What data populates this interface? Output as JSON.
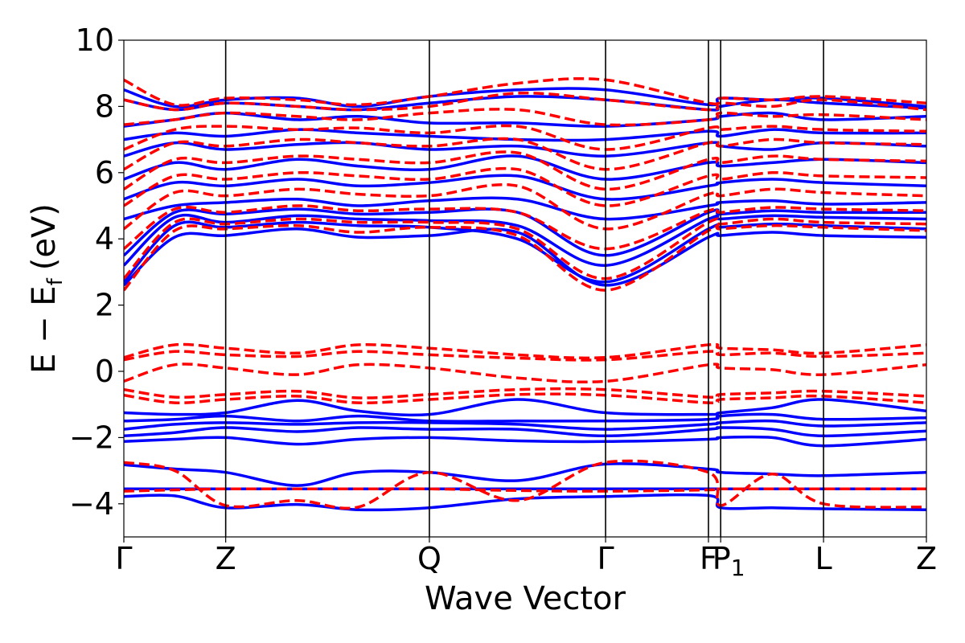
{
  "chart_data": {
    "type": "line",
    "xlabel": "Wave Vector",
    "ylabel_main": "E − E",
    "ylabel_sub": "f",
    "ylabel_unit": "(eV)",
    "ylim": [
      -5,
      10
    ],
    "xlim": [
      0,
      7.88
    ],
    "grid": false,
    "yticks": [
      -4,
      -2,
      0,
      2,
      4,
      6,
      8,
      10
    ],
    "ytick_labels": [
      "−4",
      "−2",
      "0",
      "2",
      "4",
      "6",
      "8",
      "10"
    ],
    "kpoints": [
      {
        "label": "Γ",
        "sub": "",
        "x": 0
      },
      {
        "label": "Z",
        "sub": "",
        "x": 1.0
      },
      {
        "label": "Q",
        "sub": "",
        "x": 3.0
      },
      {
        "label": "Γ",
        "sub": "",
        "x": 4.73
      },
      {
        "label": "F",
        "sub": "",
        "x": 5.74
      },
      {
        "label": "P",
        "sub": "1",
        "x": 5.86
      },
      {
        "label": "L",
        "sub": "",
        "x": 6.87
      },
      {
        "label": "Z",
        "sub": "",
        "x": 7.88
      }
    ],
    "series": [
      {
        "color": "#0000ff",
        "dash": "solid",
        "bands": [
          [
            -3.78,
            -3.76,
            -4.12,
            -4.02,
            -4.18,
            -4.12,
            -3.85,
            -3.78,
            -3.75,
            -4.12,
            -4.12,
            -4.15,
            -4.18
          ],
          [
            -3.55,
            -3.55,
            -3.55,
            -3.55,
            -3.55,
            -3.55,
            -3.55,
            -3.55,
            -3.55,
            -3.55,
            -3.55,
            -3.55,
            -3.55
          ],
          [
            -2.82,
            -2.95,
            -3.05,
            -3.45,
            -3.05,
            -3.05,
            -3.3,
            -2.8,
            -2.95,
            -3.05,
            -3.1,
            -3.15,
            -3.05
          ],
          [
            -2.12,
            -2.05,
            -2.0,
            -2.2,
            -2.05,
            -2.0,
            -2.1,
            -2.12,
            -2.05,
            -2.0,
            -2.0,
            -2.25,
            -2.05
          ],
          [
            -1.95,
            -1.85,
            -1.7,
            -1.82,
            -1.7,
            -1.75,
            -1.75,
            -1.95,
            -1.75,
            -1.7,
            -1.75,
            -1.95,
            -1.8
          ],
          [
            -1.75,
            -1.6,
            -1.55,
            -1.6,
            -1.55,
            -1.55,
            -1.6,
            -1.75,
            -1.6,
            -1.55,
            -1.5,
            -1.65,
            -1.55
          ],
          [
            -1.5,
            -1.45,
            -1.35,
            -1.5,
            -1.35,
            -1.5,
            -1.5,
            -1.5,
            -1.45,
            -1.35,
            -1.3,
            -1.45,
            -1.4
          ],
          [
            -1.25,
            -1.3,
            -1.25,
            -0.88,
            -1.2,
            -1.3,
            -0.85,
            -1.25,
            -1.3,
            -1.25,
            -1.1,
            -0.85,
            -1.2
          ],
          [
            2.6,
            4.05,
            4.1,
            4.3,
            4.05,
            4.1,
            4.2,
            2.6,
            4.05,
            4.1,
            4.2,
            4.1,
            4.05
          ],
          [
            2.7,
            4.4,
            4.35,
            4.5,
            4.4,
            4.35,
            4.0,
            2.7,
            4.3,
            4.35,
            4.45,
            4.4,
            4.3
          ],
          [
            3.2,
            4.65,
            4.5,
            4.7,
            4.6,
            4.55,
            4.4,
            3.2,
            4.6,
            4.6,
            4.7,
            4.65,
            4.6
          ],
          [
            3.5,
            4.8,
            4.75,
            4.9,
            4.75,
            4.8,
            4.8,
            3.5,
            4.8,
            4.75,
            4.85,
            4.8,
            4.8
          ],
          [
            4.6,
            5.0,
            5.1,
            5.2,
            5.0,
            5.15,
            5.2,
            4.6,
            5.0,
            5.1,
            5.15,
            5.05,
            5.1
          ],
          [
            5.2,
            5.7,
            5.6,
            5.8,
            5.6,
            5.7,
            5.9,
            5.2,
            5.6,
            5.7,
            5.8,
            5.7,
            5.6
          ],
          [
            5.8,
            6.3,
            6.1,
            6.4,
            6.2,
            6.1,
            6.5,
            5.8,
            6.3,
            6.2,
            6.3,
            6.4,
            6.3
          ],
          [
            6.5,
            6.9,
            6.7,
            6.85,
            6.9,
            6.7,
            6.8,
            6.5,
            6.9,
            6.8,
            6.7,
            6.9,
            6.8
          ],
          [
            7.0,
            7.2,
            7.1,
            7.3,
            7.2,
            7.1,
            7.0,
            7.0,
            7.25,
            7.1,
            7.3,
            7.2,
            7.2
          ],
          [
            7.4,
            7.6,
            7.8,
            7.6,
            7.7,
            7.5,
            7.5,
            7.4,
            7.6,
            7.7,
            7.8,
            7.6,
            7.7
          ],
          [
            8.2,
            7.9,
            8.1,
            8.0,
            7.9,
            8.1,
            8.3,
            8.2,
            7.9,
            8.0,
            8.2,
            8.1,
            7.95
          ],
          [
            8.5,
            8.0,
            8.2,
            8.25,
            8.0,
            8.3,
            8.5,
            8.5,
            8.05,
            8.25,
            8.2,
            8.25,
            8.0
          ]
        ]
      },
      {
        "color": "#ff0000",
        "dash": "dashed",
        "bands": [
          [
            -3.62,
            -3.58,
            -3.55,
            -3.55,
            -3.55,
            -3.55,
            -3.6,
            -3.62,
            -3.58,
            -3.55,
            -3.55,
            -3.55,
            -3.55
          ],
          [
            -2.75,
            -3.0,
            -4.05,
            -3.9,
            -4.1,
            -3.05,
            -3.9,
            -2.75,
            -3.05,
            -4.05,
            -3.1,
            -4.0,
            -4.1
          ],
          [
            -0.72,
            -0.95,
            -0.85,
            -0.75,
            -0.95,
            -0.85,
            -0.7,
            -0.72,
            -0.95,
            -0.85,
            -0.8,
            -0.75,
            -0.95
          ],
          [
            -0.55,
            -0.78,
            -0.7,
            -0.6,
            -0.8,
            -0.7,
            -0.55,
            -0.55,
            -0.78,
            -0.7,
            -0.65,
            -0.6,
            -0.75
          ],
          [
            -0.3,
            0.2,
            0.1,
            -0.1,
            0.2,
            0.1,
            -0.2,
            -0.3,
            0.2,
            0.1,
            0.05,
            -0.1,
            0.2
          ],
          [
            0.35,
            0.6,
            0.5,
            0.45,
            0.6,
            0.5,
            0.4,
            0.35,
            0.6,
            0.5,
            0.55,
            0.45,
            0.55
          ],
          [
            0.42,
            0.8,
            0.7,
            0.55,
            0.8,
            0.7,
            0.5,
            0.42,
            0.8,
            0.7,
            0.65,
            0.55,
            0.8
          ],
          [
            2.45,
            4.25,
            4.3,
            4.4,
            4.2,
            4.35,
            4.1,
            2.45,
            4.25,
            4.3,
            4.4,
            4.35,
            4.25
          ],
          [
            2.8,
            4.5,
            4.45,
            4.6,
            4.5,
            4.5,
            4.3,
            2.8,
            4.5,
            4.45,
            4.6,
            4.5,
            4.45
          ],
          [
            3.7,
            4.9,
            4.8,
            5.0,
            4.85,
            4.9,
            4.8,
            3.7,
            4.85,
            4.8,
            4.95,
            4.9,
            4.85
          ],
          [
            4.3,
            5.4,
            5.3,
            5.5,
            5.35,
            5.3,
            5.6,
            4.3,
            5.35,
            5.3,
            5.5,
            5.4,
            5.3
          ],
          [
            5.0,
            5.9,
            5.8,
            6.0,
            5.9,
            5.8,
            6.1,
            5.0,
            5.9,
            5.8,
            6.0,
            5.9,
            5.85
          ],
          [
            5.5,
            6.4,
            6.3,
            6.5,
            6.4,
            6.3,
            6.6,
            5.5,
            6.4,
            6.3,
            6.5,
            6.4,
            6.35
          ],
          [
            6.1,
            6.9,
            6.8,
            7.0,
            6.9,
            6.8,
            7.0,
            6.1,
            6.9,
            6.8,
            7.0,
            6.9,
            6.85
          ],
          [
            6.7,
            7.3,
            7.4,
            7.3,
            7.35,
            7.2,
            7.4,
            6.7,
            7.35,
            7.3,
            7.4,
            7.3,
            7.25
          ],
          [
            7.45,
            7.6,
            7.8,
            7.7,
            7.6,
            7.8,
            7.9,
            7.45,
            7.6,
            7.8,
            7.7,
            7.75,
            7.6
          ],
          [
            8.2,
            7.9,
            8.1,
            8.0,
            7.9,
            8.0,
            8.4,
            8.2,
            7.9,
            8.1,
            8.0,
            8.2,
            7.9
          ],
          [
            8.8,
            8.05,
            8.25,
            8.2,
            8.05,
            8.3,
            8.7,
            8.8,
            8.1,
            8.25,
            8.2,
            8.3,
            8.1
          ]
        ]
      }
    ]
  }
}
